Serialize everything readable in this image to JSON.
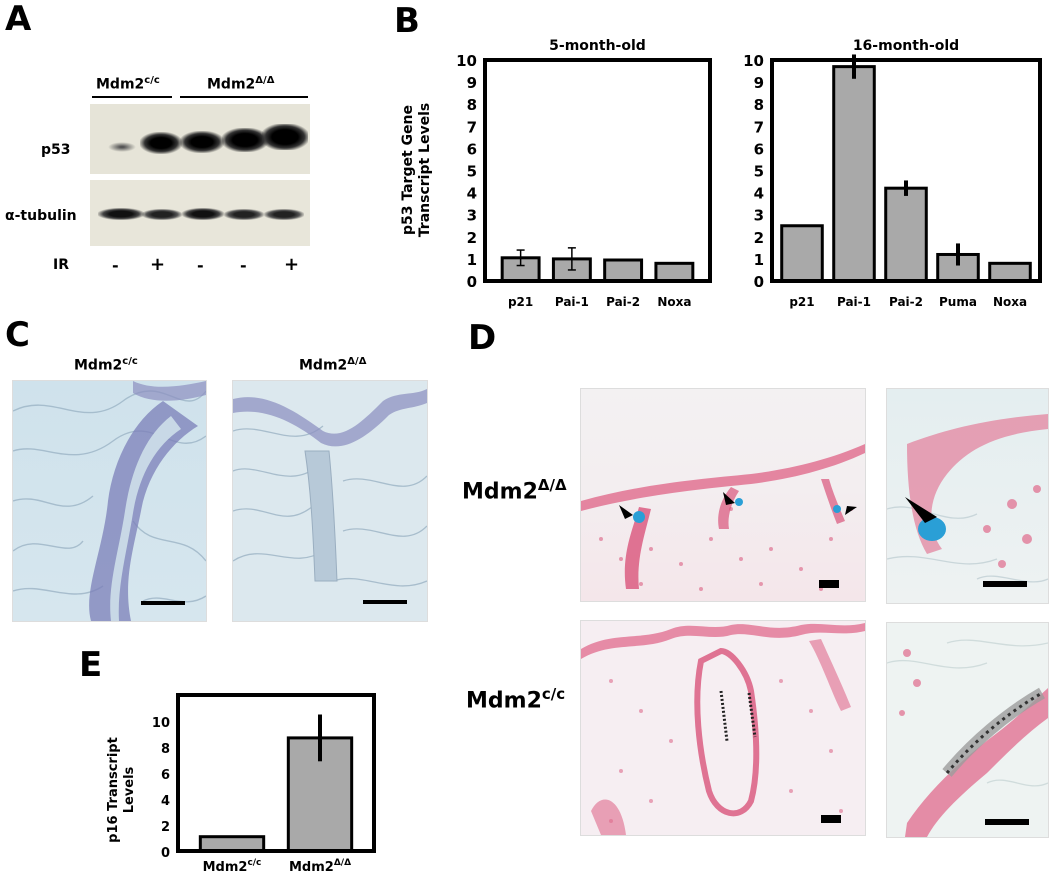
{
  "panels": {
    "a": "A",
    "b": "B",
    "c": "C",
    "d": "D",
    "e": "E"
  },
  "blot": {
    "group1": "Mdm2",
    "group1_sup": "c/c",
    "group2": "Mdm2",
    "group2_sup": "Δ/Δ",
    "row1": "p53",
    "row2": "α-tubulin",
    "ir_label": "IR",
    "ir_marks": [
      "-",
      "+",
      "-",
      "-",
      "+"
    ]
  },
  "chart_data": [
    {
      "type": "bar",
      "title": "5-month-old",
      "ylabel": "p53 Target Gene Transcript  Levels",
      "categories": [
        "p21",
        "Pai-1",
        "Pai-2",
        "Noxa"
      ],
      "values": [
        1.05,
        1.0,
        0.95,
        0.8
      ],
      "errors": [
        0.35,
        0.5,
        0,
        0
      ],
      "ylim": [
        0,
        10
      ],
      "yticks": [
        "0",
        "1",
        "2",
        "3",
        "4",
        "5",
        "6",
        "7",
        "8",
        "9",
        "10"
      ],
      "bar_color": "#a9a9a9"
    },
    {
      "type": "bar",
      "title": "16-month-old",
      "ylabel": "",
      "categories": [
        "p21",
        "Pai-1",
        "Pai-2",
        "Puma",
        "Noxa"
      ],
      "values": [
        2.5,
        9.7,
        4.2,
        1.2,
        0.8
      ],
      "errors": [
        0,
        0.55,
        0.35,
        0.5,
        0
      ],
      "ylim": [
        0,
        10
      ],
      "yticks": [
        "0",
        "1",
        "2",
        "3",
        "4",
        "5",
        "6",
        "7",
        "8",
        "9",
        "10"
      ],
      "bar_color": "#a9a9a9"
    },
    {
      "type": "bar",
      "title": "",
      "ylabel": "p16 Transcript Levels",
      "categories": [
        "Mdm2",
        "Mdm2"
      ],
      "category_sup": [
        "c/c",
        "Δ/Δ"
      ],
      "values": [
        1.1,
        8.7
      ],
      "errors": [
        0,
        1.8
      ],
      "ylim": [
        0,
        12
      ],
      "yticks": [
        "0",
        "2",
        "4",
        "6",
        "8",
        "10"
      ],
      "bar_color": "#a9a9a9"
    }
  ],
  "panel_c": {
    "left_label": "Mdm2",
    "left_sup": "c/c",
    "right_label": "Mdm2",
    "right_sup": "Δ/Δ"
  },
  "panel_d": {
    "top_label": "Mdm2",
    "top_sup": "Δ/Δ",
    "bottom_label": "Mdm2",
    "bottom_sup": "c/c"
  },
  "colors": {
    "bar": "#a9a9a9",
    "he_stain": "#7b7fb8",
    "nuclear_fast_red": "#d9547a",
    "xgal_blue": "#2a9fd6"
  }
}
